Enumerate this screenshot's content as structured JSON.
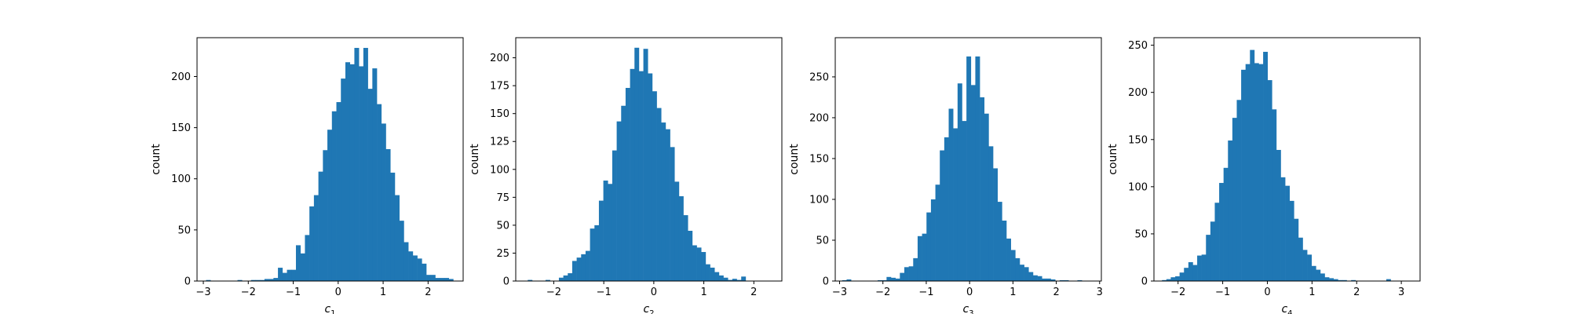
{
  "chart_data": [
    {
      "type": "bar",
      "xlabel_base": "c",
      "xlabel_sub": "1",
      "ylabel": "count",
      "xlim": [
        -3.14,
        2.78
      ],
      "ylim": [
        0,
        238
      ],
      "xticks": [
        -3,
        -2,
        -1,
        0,
        1,
        2
      ],
      "yticks": [
        0,
        50,
        100,
        150,
        200
      ],
      "bin_start": -2.94,
      "bin_width": 0.1,
      "values": [
        1,
        0,
        0,
        0,
        0,
        0,
        0,
        1,
        0,
        0,
        1,
        1,
        1,
        2,
        2,
        3,
        13,
        8,
        11,
        11,
        35,
        27,
        45,
        73,
        84,
        107,
        128,
        148,
        166,
        175,
        198,
        214,
        212,
        228,
        210,
        228,
        188,
        208,
        173,
        154,
        129,
        106,
        84,
        59,
        38,
        29,
        25,
        22,
        17,
        6,
        6,
        3,
        3,
        3,
        2,
        0,
        0,
        0,
        0,
        0
      ]
    },
    {
      "type": "bar",
      "xlabel_base": "c",
      "xlabel_sub": "2",
      "ylabel": "count",
      "xlim": [
        -2.76,
        2.56
      ],
      "ylim": [
        0,
        218
      ],
      "xticks": [
        -2,
        -1,
        0,
        1,
        2
      ],
      "yticks": [
        0,
        25,
        50,
        75,
        100,
        125,
        150,
        175,
        200
      ],
      "bin_start": -2.52,
      "bin_width": 0.0889,
      "values": [
        1,
        0,
        0,
        0,
        1,
        0,
        0,
        3,
        5,
        7,
        18,
        21,
        24,
        27,
        47,
        50,
        72,
        90,
        87,
        117,
        143,
        157,
        173,
        190,
        209,
        188,
        208,
        186,
        170,
        155,
        142,
        136,
        120,
        89,
        76,
        59,
        45,
        32,
        30,
        26,
        15,
        12,
        8,
        5,
        3,
        1,
        2,
        1,
        4,
        0
      ]
    },
    {
      "type": "bar",
      "xlabel_base": "c",
      "xlabel_sub": "3",
      "ylabel": "count",
      "xlim": [
        -3.1,
        3.04
      ],
      "ylim": [
        0,
        298
      ],
      "xticks": [
        -3,
        -2,
        -1,
        0,
        1,
        2,
        3
      ],
      "yticks": [
        0,
        50,
        100,
        150,
        200,
        250
      ],
      "bin_start": -2.94,
      "bin_width": 0.1024,
      "values": [
        1,
        2,
        0,
        0,
        0,
        0,
        0,
        0,
        1,
        1,
        5,
        4,
        3,
        10,
        17,
        18,
        28,
        55,
        58,
        84,
        100,
        118,
        160,
        176,
        211,
        187,
        242,
        196,
        275,
        240,
        275,
        225,
        205,
        165,
        138,
        97,
        74,
        52,
        38,
        28,
        20,
        17,
        11,
        7,
        6,
        3,
        3,
        2,
        0,
        1,
        1,
        0,
        0,
        1
      ]
    },
    {
      "type": "bar",
      "xlabel_base": "c",
      "xlabel_sub": "4",
      "ylabel": "count",
      "xlim": [
        -2.54,
        3.42
      ],
      "ylim": [
        0,
        258
      ],
      "xticks": [
        -2,
        -1,
        0,
        1,
        2,
        3
      ],
      "yticks": [
        0,
        50,
        100,
        150,
        200,
        250
      ],
      "bin_start": -2.36,
      "bin_width": 0.0985,
      "values": [
        1,
        2,
        4,
        5,
        9,
        14,
        20,
        17,
        27,
        28,
        49,
        63,
        83,
        104,
        120,
        149,
        173,
        192,
        224,
        230,
        245,
        231,
        230,
        243,
        213,
        182,
        139,
        110,
        101,
        85,
        66,
        46,
        33,
        28,
        16,
        12,
        8,
        4,
        3,
        2,
        1,
        1,
        0,
        1,
        0,
        0,
        0,
        0,
        0,
        0,
        0,
        2
      ]
    }
  ]
}
